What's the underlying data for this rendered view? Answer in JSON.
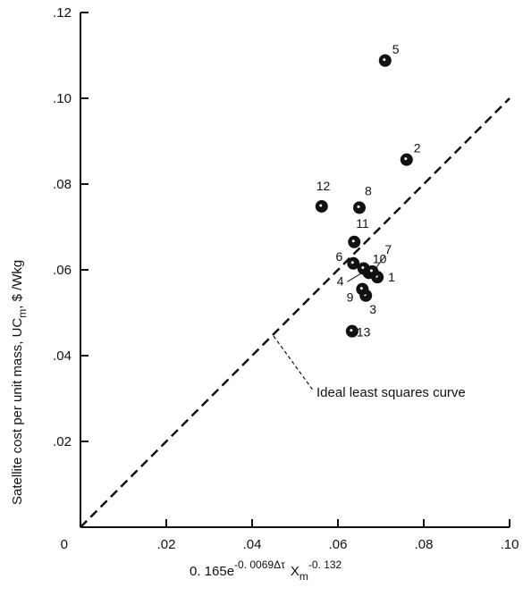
{
  "chart_data": {
    "type": "scatter",
    "xlabel": "0. 165e",
    "xlabel_exp1": "-0. 0069Δτ",
    "xlabel_mid": "X",
    "xlabel_sub": "m",
    "xlabel_exp2": "-0. 132",
    "ylabel": "Satellite cost per unit mass,  UC",
    "ylabel_sub": "m",
    "ylabel_unit": ",  $ /Wkg",
    "xlim": [
      0,
      0.1
    ],
    "ylim": [
      0,
      0.12
    ],
    "x_ticks": [
      0,
      0.02,
      0.04,
      0.06,
      0.08,
      0.1
    ],
    "x_tick_labels": [
      "0",
      ".02",
      ".04",
      ".06",
      ".08",
      ".10"
    ],
    "y_ticks": [
      0.02,
      0.04,
      0.06,
      0.08,
      0.1,
      0.12
    ],
    "y_tick_labels": [
      ".02",
      ".04",
      ".06",
      ".08",
      ".10",
      ".12"
    ],
    "grid": false,
    "points": [
      {
        "label": "1",
        "x": 0.0692,
        "y": 0.0583
      },
      {
        "label": "2",
        "x": 0.076,
        "y": 0.0857
      },
      {
        "label": "3",
        "x": 0.0665,
        "y": 0.054
      },
      {
        "label": "4",
        "x": 0.0672,
        "y": 0.0593
      },
      {
        "label": "5",
        "x": 0.071,
        "y": 0.1088
      },
      {
        "label": "6",
        "x": 0.0636,
        "y": 0.0615
      },
      {
        "label": "7",
        "x": 0.068,
        "y": 0.0596
      },
      {
        "label": "8",
        "x": 0.065,
        "y": 0.0745
      },
      {
        "label": "9",
        "x": 0.0657,
        "y": 0.0555
      },
      {
        "label": "10",
        "x": 0.066,
        "y": 0.0603
      },
      {
        "label": "11",
        "x": 0.0638,
        "y": 0.0665
      },
      {
        "label": "12",
        "x": 0.0562,
        "y": 0.0748
      },
      {
        "label": "13",
        "x": 0.0633,
        "y": 0.0457
      }
    ],
    "reference_line": {
      "label": "Ideal least squares curve",
      "x": [
        0,
        0.1
      ],
      "y": [
        0,
        0.1
      ],
      "style": "dashed"
    },
    "color": "#111111"
  }
}
